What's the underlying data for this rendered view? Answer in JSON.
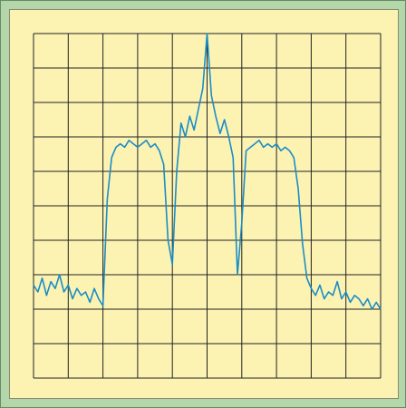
{
  "chart_data": {
    "type": "line",
    "x": [
      0,
      0.125,
      0.25,
      0.375,
      0.5,
      0.625,
      0.75,
      0.875,
      1,
      1.125,
      1.25,
      1.375,
      1.5,
      1.625,
      1.75,
      1.875,
      2,
      2.125,
      2.25,
      2.375,
      2.5,
      2.625,
      2.75,
      2.875,
      3,
      3.125,
      3.25,
      3.375,
      3.5,
      3.625,
      3.75,
      3.875,
      4,
      4.125,
      4.25,
      4.375,
      4.5,
      4.625,
      4.75,
      4.875,
      5,
      5.125,
      5.25,
      5.375,
      5.5,
      5.625,
      5.75,
      5.875,
      6,
      6.125,
      6.25,
      6.375,
      6.5,
      6.625,
      6.75,
      6.875,
      7,
      7.125,
      7.25,
      7.375,
      7.5,
      7.625,
      7.75,
      7.875,
      8,
      8.125,
      8.25,
      8.375,
      8.5,
      8.625,
      8.75,
      8.875,
      9,
      9.125,
      9.25,
      9.375,
      9.5,
      9.625,
      9.75,
      9.875,
      10
    ],
    "values": [
      2.7,
      2.5,
      2.9,
      2.4,
      2.8,
      2.6,
      3.0,
      2.5,
      2.7,
      2.3,
      2.6,
      2.4,
      2.5,
      2.2,
      2.6,
      2.3,
      2.1,
      5.2,
      6.4,
      6.7,
      6.8,
      6.7,
      6.9,
      6.8,
      6.7,
      6.8,
      6.9,
      6.7,
      6.8,
      6.6,
      6.2,
      4.0,
      3.3,
      6.0,
      7.4,
      7.0,
      7.6,
      7.2,
      7.8,
      8.4,
      10.0,
      8.2,
      7.6,
      7.1,
      7.5,
      7.0,
      6.4,
      3.0,
      4.5,
      6.6,
      6.7,
      6.8,
      6.9,
      6.7,
      6.8,
      6.7,
      6.8,
      6.6,
      6.7,
      6.6,
      6.4,
      5.5,
      3.9,
      2.9,
      2.6,
      2.4,
      2.7,
      2.3,
      2.5,
      2.4,
      2.8,
      2.3,
      2.5,
      2.2,
      2.4,
      2.3,
      2.1,
      2.3,
      2.0,
      2.2,
      2.0
    ],
    "color": "#1b8dc6",
    "xlim": [
      0,
      10
    ],
    "ylim": [
      0,
      10
    ],
    "xticks": [
      0,
      1,
      2,
      3,
      4,
      5,
      6,
      7,
      8,
      9,
      10
    ],
    "yticks": [
      0,
      1,
      2,
      3,
      4,
      5,
      6,
      7,
      8,
      9,
      10
    ],
    "grid": true
  }
}
